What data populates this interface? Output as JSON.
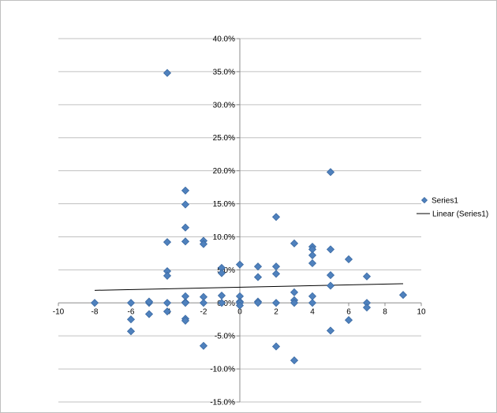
{
  "chart_data": {
    "type": "scatter",
    "title": "",
    "xlabel": "",
    "ylabel": "",
    "xlim": [
      -10,
      10
    ],
    "ylim": [
      -15,
      40
    ],
    "x_ticks": [
      -10,
      -8,
      -6,
      -4,
      -2,
      0,
      2,
      4,
      6,
      8,
      10
    ],
    "y_ticks": [
      -15,
      -10,
      -5,
      0,
      5,
      10,
      15,
      20,
      25,
      30,
      35,
      40
    ],
    "y_tick_labels": [
      "-15.0%",
      "-10.0%",
      "-5.0%",
      "0.0%",
      "5.0%",
      "10.0%",
      "15.0%",
      "20.0%",
      "25.0%",
      "30.0%",
      "35.0%",
      "40.0%"
    ],
    "grid": "horizontal",
    "legend_position": "right",
    "marker_color": "#4f81bd",
    "series": [
      {
        "name": "Series1",
        "marker": "diamond",
        "points": [
          [
            -8,
            0
          ],
          [
            -6,
            0
          ],
          [
            -6,
            -2.5
          ],
          [
            -6,
            -4.3
          ],
          [
            -5,
            0
          ],
          [
            -5,
            0.2
          ],
          [
            -5,
            -1.7
          ],
          [
            -4,
            34.8
          ],
          [
            -4,
            9.2
          ],
          [
            -4,
            4.8
          ],
          [
            -4,
            4.1
          ],
          [
            -4,
            0
          ],
          [
            -4,
            -1.3
          ],
          [
            -3,
            17.0
          ],
          [
            -3,
            14.9
          ],
          [
            -3,
            11.4
          ],
          [
            -3,
            9.3
          ],
          [
            -3,
            1.0
          ],
          [
            -3,
            0.1
          ],
          [
            -3,
            0
          ],
          [
            -3,
            -2.4
          ],
          [
            -3,
            -2.7
          ],
          [
            -2,
            9.4
          ],
          [
            -2,
            8.9
          ],
          [
            -2,
            0.9
          ],
          [
            -2,
            0
          ],
          [
            -2,
            -6.5
          ],
          [
            -1,
            5.3
          ],
          [
            -1,
            4.5
          ],
          [
            -1,
            1.1
          ],
          [
            -1,
            0
          ],
          [
            0,
            5.8
          ],
          [
            0,
            1.0
          ],
          [
            0,
            0.2
          ],
          [
            0,
            0
          ],
          [
            0,
            -0.4
          ],
          [
            1,
            5.5
          ],
          [
            1,
            3.9
          ],
          [
            1,
            0.2
          ],
          [
            1,
            0
          ],
          [
            2,
            13.0
          ],
          [
            2,
            5.5
          ],
          [
            2,
            4.4
          ],
          [
            2,
            0
          ],
          [
            2,
            -6.6
          ],
          [
            3,
            9.0
          ],
          [
            3,
            1.6
          ],
          [
            3,
            0.4
          ],
          [
            3,
            0
          ],
          [
            3,
            -8.7
          ],
          [
            4,
            8.5
          ],
          [
            4,
            8.1
          ],
          [
            4,
            7.2
          ],
          [
            4,
            6.0
          ],
          [
            4,
            1.0
          ],
          [
            4,
            0
          ],
          [
            5,
            19.8
          ],
          [
            5,
            8.1
          ],
          [
            5,
            4.2
          ],
          [
            5,
            2.6
          ],
          [
            5,
            -4.2
          ],
          [
            6,
            6.6
          ],
          [
            6,
            -2.6
          ],
          [
            7,
            4.0
          ],
          [
            7,
            0
          ],
          [
            7,
            -0.7
          ],
          [
            9,
            1.2
          ]
        ]
      }
    ],
    "trendline": {
      "name": "Linear (Series1)",
      "type": "linear",
      "x_range": [
        -8,
        9
      ],
      "y_values": [
        1.9,
        2.9
      ],
      "color": "#000000"
    }
  }
}
